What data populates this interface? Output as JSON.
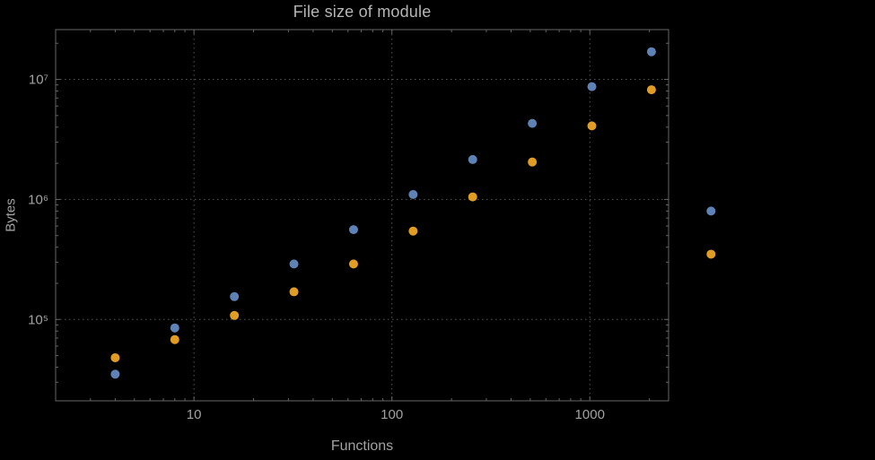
{
  "page": {
    "background": "#000000"
  },
  "chart_data": {
    "type": "scatter",
    "title": "File size of module",
    "xlabel": "Functions",
    "ylabel": "Bytes",
    "xscale": "log",
    "yscale": "log",
    "xlim": [
      2,
      2500
    ],
    "ylim": [
      21000,
      26000000
    ],
    "grid": "dotted-at-major-ticks",
    "legend": "none",
    "x_major_ticks": [
      10,
      100,
      1000
    ],
    "x_major_tick_labels": [
      "10",
      "100",
      "1000"
    ],
    "y_major_ticks": [
      100000,
      1000000,
      10000000
    ],
    "y_major_tick_labels": [
      "10⁵",
      "10⁶",
      "10⁷"
    ],
    "x": [
      4,
      8,
      16,
      32,
      64,
      128,
      256,
      512,
      1024,
      2048,
      4096
    ],
    "series": [
      {
        "name": "blue",
        "color": "#5e82b5",
        "values": [
          35000,
          85000,
          155000,
          290000,
          560000,
          1100000,
          2150000,
          4300000,
          8700000,
          17000000,
          800000
        ]
      },
      {
        "name": "orange",
        "color": "#e19c24",
        "values": [
          48000,
          68000,
          108000,
          170000,
          290000,
          545000,
          1050000,
          2050000,
          4100000,
          8200000,
          350000
        ]
      }
    ],
    "colors": {
      "frame": "#666666",
      "grid": "#565656",
      "text": "#a2a2a2",
      "title": "#b5b5b5"
    },
    "point_radius": 5
  }
}
